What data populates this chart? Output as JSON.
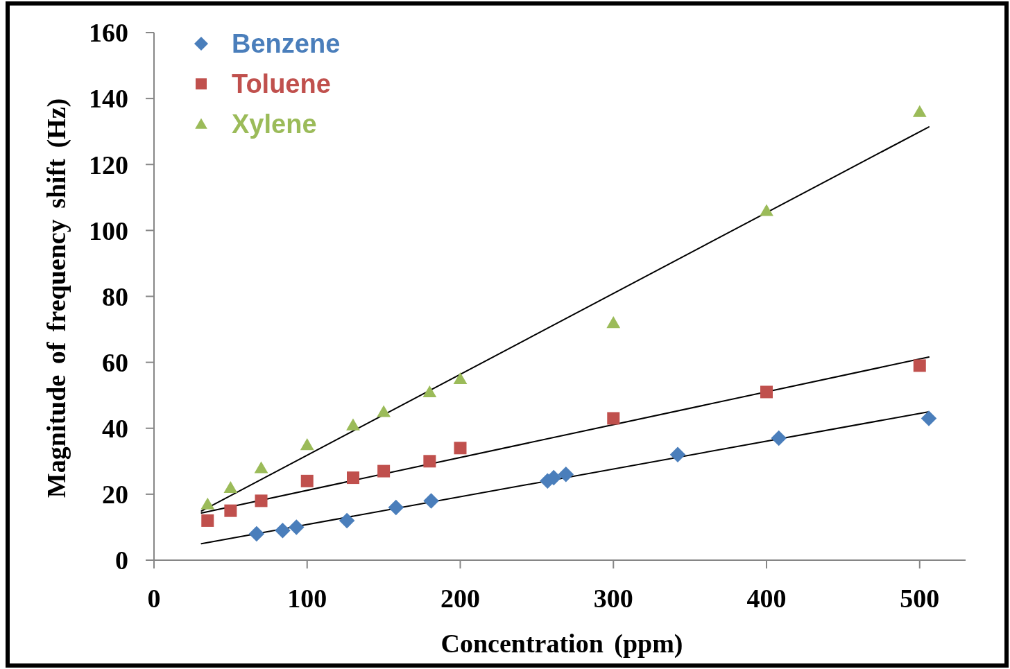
{
  "chart_data": {
    "type": "scatter",
    "xlabel": "Concentration (ppm)",
    "ylabel": "Magnitude of frequency shift (Hz)",
    "xlim": [
      0,
      530
    ],
    "xticks": [
      0,
      100,
      200,
      300,
      400,
      500
    ],
    "ylim": [
      0,
      160
    ],
    "yticks": [
      0,
      20,
      40,
      60,
      80,
      100,
      120,
      140,
      160
    ],
    "grid": false,
    "legend": "top left",
    "series": [
      {
        "name": "Benzene",
        "color": "#4a7ebb",
        "marker": "diamond",
        "x": [
          67,
          84,
          93,
          126,
          158,
          181,
          257,
          261,
          269,
          342,
          408,
          506
        ],
        "values": [
          8,
          9,
          10,
          12,
          16,
          18,
          24,
          25,
          26,
          32,
          37,
          43
        ]
      },
      {
        "name": "Toluene",
        "color": "#c0504d",
        "marker": "square",
        "x": [
          35,
          50,
          70,
          100,
          130,
          150,
          180,
          200,
          300,
          400,
          500
        ],
        "values": [
          12,
          15,
          18,
          24,
          25,
          27,
          30,
          34,
          43,
          51,
          59
        ]
      },
      {
        "name": "Xylene",
        "color": "#9bbb59",
        "marker": "triangle",
        "x": [
          35,
          50,
          70,
          100,
          130,
          150,
          180,
          200,
          300,
          400,
          500
        ],
        "values": [
          17,
          22,
          28,
          35,
          41,
          45,
          51,
          55,
          72,
          106,
          136
        ]
      },
      {
        "type": "line",
        "color": "#000000",
        "marker": "none",
        "line_style": "solid",
        "x": [
          31,
          506
        ],
        "values": [
          5,
          45
        ]
      },
      {
        "type": "line",
        "color": "#000000",
        "marker": "none",
        "line_style": "solid",
        "x": [
          31,
          506
        ],
        "values": [
          14.3,
          61.6
        ]
      },
      {
        "type": "line",
        "color": "#000000",
        "marker": "none",
        "line_style": "solid",
        "x": [
          31,
          506
        ],
        "values": [
          14.9,
          131.4
        ]
      }
    ]
  }
}
